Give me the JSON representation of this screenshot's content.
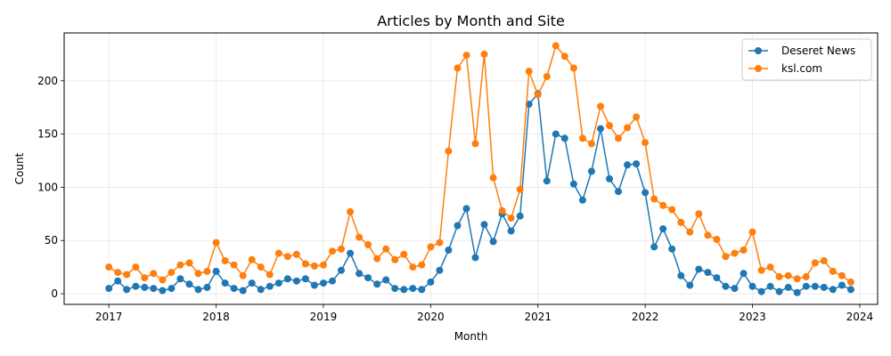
{
  "chart_data": {
    "type": "line",
    "title": "Articles by Month and Site",
    "xlabel": "Month",
    "ylabel": "Count",
    "x_start": "2017-01",
    "x_frequency": "monthly",
    "xlim": [
      "2016-08",
      "2024-03"
    ],
    "ylim": [
      -10,
      245
    ],
    "x_ticks": [
      "2017",
      "2018",
      "2019",
      "2020",
      "2021",
      "2022",
      "2023",
      "2024"
    ],
    "y_ticks": [
      0,
      50,
      100,
      150,
      200
    ],
    "grid": true,
    "legend_position": "top-right",
    "series": [
      {
        "name": "Deseret News",
        "color": "#1f77b4",
        "values": [
          5,
          12,
          4,
          7,
          6,
          5,
          3,
          5,
          14,
          9,
          4,
          6,
          21,
          10,
          5,
          3,
          10,
          4,
          7,
          10,
          14,
          12,
          14,
          8,
          10,
          12,
          22,
          38,
          19,
          15,
          9,
          13,
          5,
          4,
          5,
          4,
          11,
          22,
          41,
          64,
          80,
          34,
          65,
          49,
          75,
          59,
          73,
          178,
          188,
          106,
          150,
          146,
          103,
          88,
          115,
          155,
          108,
          96,
          121,
          122,
          95,
          44,
          61,
          42,
          17,
          8,
          23,
          20,
          15,
          7,
          5,
          19,
          7,
          2,
          7,
          2,
          6,
          1,
          7,
          7,
          6,
          4,
          8,
          4
        ]
      },
      {
        "name": "ksl.com",
        "color": "#ff7f0e",
        "values": [
          25,
          20,
          18,
          25,
          15,
          19,
          13,
          20,
          27,
          29,
          19,
          21,
          48,
          31,
          27,
          17,
          32,
          25,
          18,
          38,
          35,
          37,
          28,
          26,
          27,
          40,
          42,
          77,
          53,
          46,
          33,
          42,
          32,
          37,
          25,
          27,
          44,
          48,
          134,
          212,
          224,
          141,
          225,
          109,
          78,
          71,
          98,
          209,
          187,
          204,
          233,
          223,
          212,
          146,
          141,
          176,
          158,
          146,
          156,
          166,
          142,
          89,
          83,
          79,
          67,
          58,
          75,
          55,
          51,
          35,
          38,
          41,
          58,
          22,
          25,
          16,
          17,
          14,
          16,
          29,
          31,
          21,
          17,
          11
        ]
      }
    ]
  }
}
